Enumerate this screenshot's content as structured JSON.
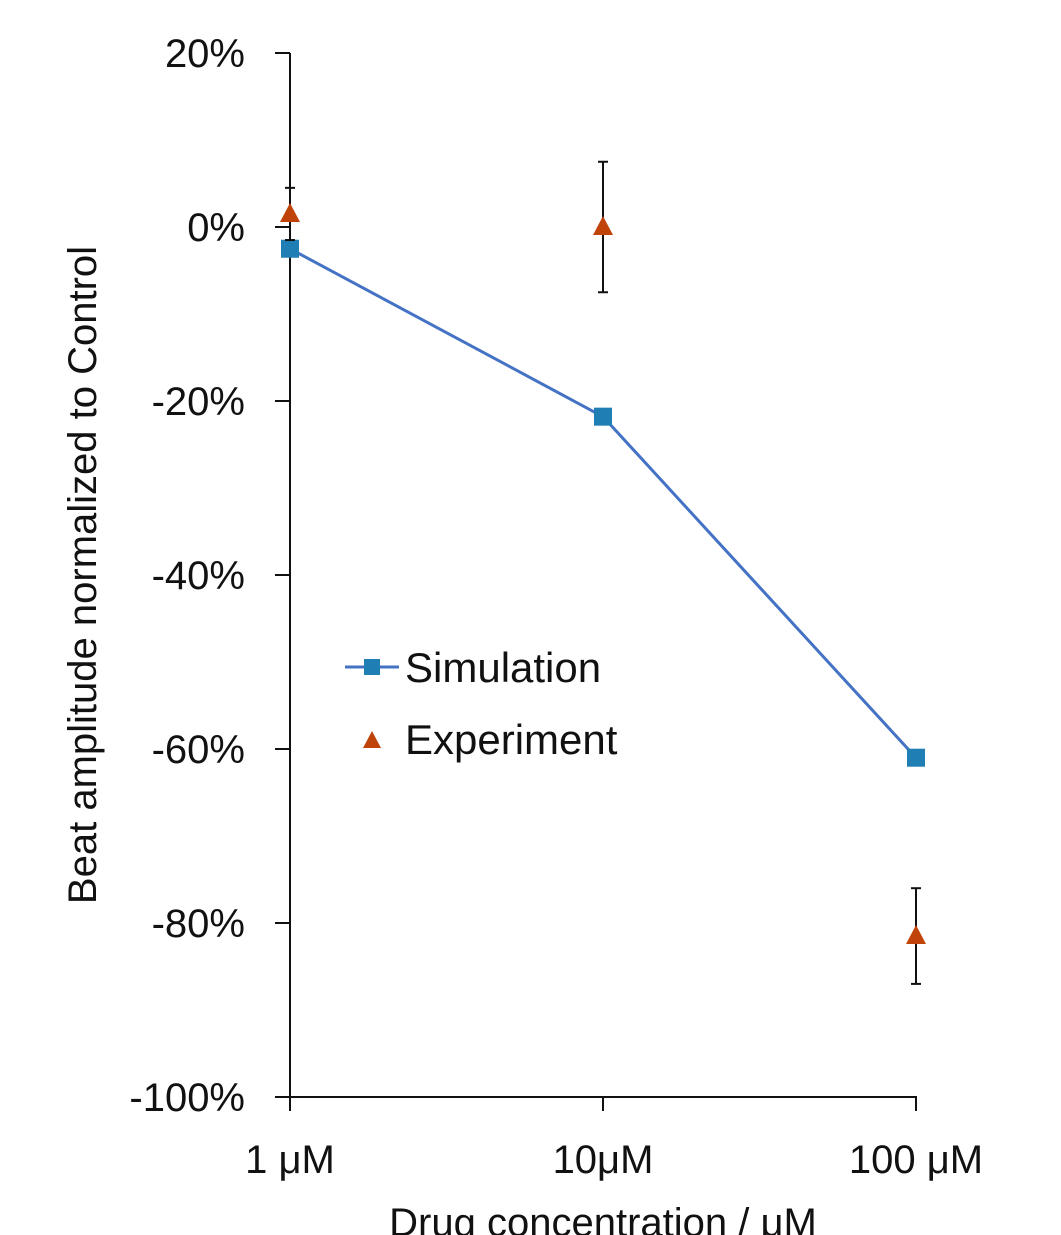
{
  "chart_data": {
    "type": "line",
    "xlabel": "Drug concentration / μM",
    "ylabel": "Beat amplitude normalized to Control",
    "categories": [
      "1 μM",
      "10μM",
      "100 μM"
    ],
    "y_ticks": [
      "20%",
      "0%",
      "-20%",
      "-40%",
      "-60%",
      "-80%",
      "-100%"
    ],
    "y_tick_values": [
      20,
      0,
      -20,
      -40,
      -60,
      -80,
      -100
    ],
    "ylim": [
      -100,
      20
    ],
    "grid": false,
    "legend_position": "center-left",
    "series": [
      {
        "name": "Simulation",
        "kind": "line-square",
        "color": "#1f7fb4",
        "line_color": "#4472c4",
        "values": [
          -2.5,
          -21.8,
          -61
        ]
      },
      {
        "name": "Experiment",
        "kind": "triangle",
        "color": "#c0440a",
        "values": [
          1.5,
          0,
          -81.5
        ],
        "error": [
          3,
          7.5,
          5.5
        ]
      }
    ]
  }
}
